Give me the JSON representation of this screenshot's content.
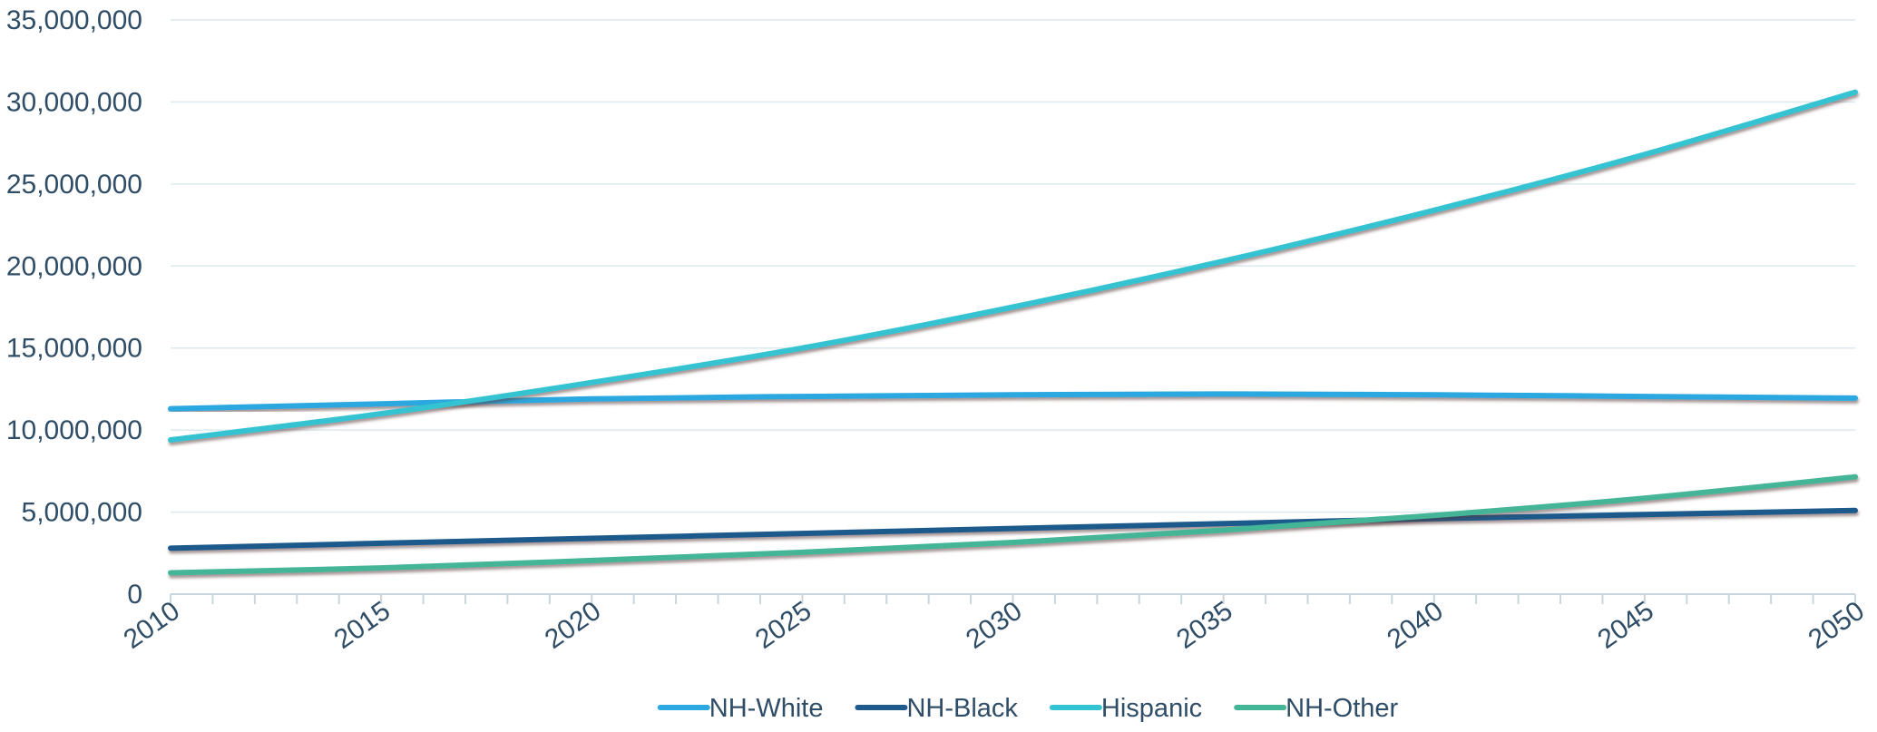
{
  "chart_data": {
    "type": "line",
    "title": "",
    "xlabel": "",
    "ylabel": "",
    "x": [
      2010,
      2015,
      2020,
      2025,
      2030,
      2035,
      2040,
      2045,
      2050
    ],
    "x_tick_labels": [
      "2010",
      "2015",
      "2020",
      "2025",
      "2030",
      "2035",
      "2040",
      "2045",
      "2050"
    ],
    "xlim": [
      2010,
      2050
    ],
    "ylim": [
      0,
      35000000
    ],
    "y_ticks": [
      0,
      5000000,
      10000000,
      15000000,
      20000000,
      25000000,
      30000000,
      35000000
    ],
    "y_tick_labels": [
      "0",
      "5,000,000",
      "10,000,000",
      "15,000,000",
      "20,000,000",
      "25,000,000",
      "30,000,000",
      "35,000,000"
    ],
    "grid": true,
    "legend_position": "bottom",
    "series": [
      {
        "name": "NH-White",
        "color": "#2ba8df",
        "values": [
          11300000,
          11600000,
          11900000,
          12050000,
          12150000,
          12200000,
          12150000,
          12050000,
          11950000
        ]
      },
      {
        "name": "NH-Black",
        "color": "#1f5a8c",
        "values": [
          2800000,
          3100000,
          3400000,
          3700000,
          4000000,
          4300000,
          4600000,
          4850000,
          5100000
        ]
      },
      {
        "name": "Hispanic",
        "color": "#34c3d2",
        "values": [
          9400000,
          11000000,
          12900000,
          15000000,
          17500000,
          20300000,
          23400000,
          26800000,
          30600000
        ]
      },
      {
        "name": "NH-Other",
        "color": "#45b598",
        "values": [
          1300000,
          1600000,
          2050000,
          2550000,
          3150000,
          3900000,
          4800000,
          5850000,
          7150000
        ]
      }
    ]
  }
}
